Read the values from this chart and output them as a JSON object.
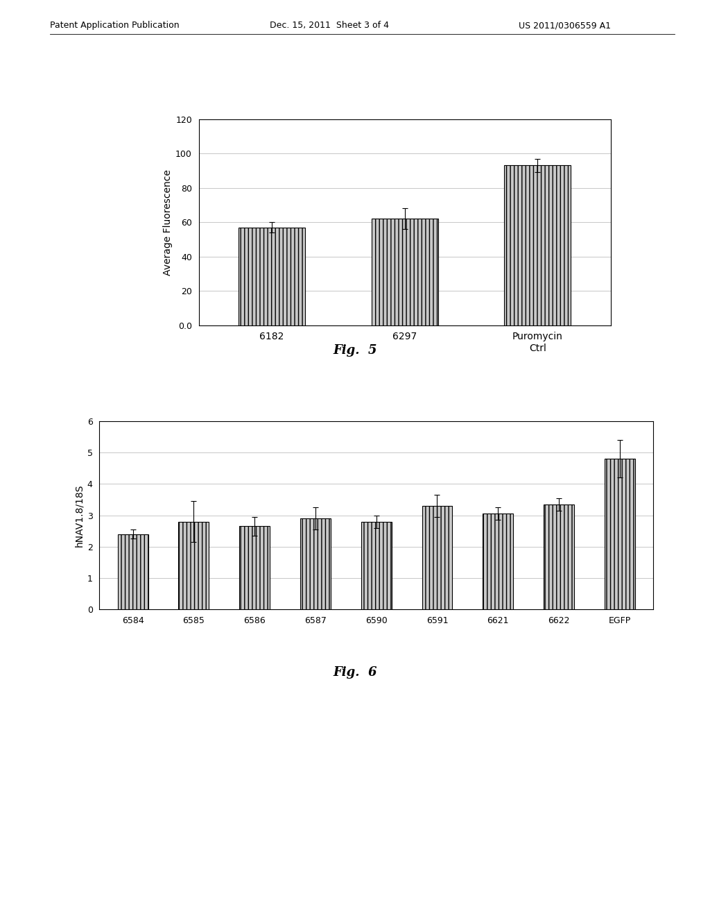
{
  "fig5": {
    "categories": [
      "6182",
      "6297",
      "Puromycin\nCtrl"
    ],
    "values": [
      57,
      62,
      93
    ],
    "errors": [
      3,
      6,
      4
    ],
    "ylabel": "Average Fluorescence",
    "ylim": [
      0,
      120
    ],
    "yticks": [
      0.0,
      20,
      40,
      60,
      80,
      100,
      120
    ],
    "ytick_labels": [
      "0.0",
      "20",
      "40",
      "60",
      "80",
      "100",
      "120"
    ],
    "caption": "Fig.  5"
  },
  "fig6": {
    "categories": [
      "6584",
      "6585",
      "6586",
      "6587",
      "6590",
      "6591",
      "6621",
      "6622",
      "EGFP"
    ],
    "values": [
      2.4,
      2.8,
      2.65,
      2.9,
      2.8,
      3.3,
      3.05,
      3.35,
      4.8
    ],
    "errors": [
      0.15,
      0.65,
      0.3,
      0.35,
      0.2,
      0.35,
      0.2,
      0.2,
      0.6
    ],
    "ylabel": "hNAV1.8/18S",
    "ylim": [
      0,
      6
    ],
    "yticks": [
      0,
      1,
      2,
      3,
      4,
      5,
      6
    ],
    "ytick_labels": [
      "0",
      "1",
      "2",
      "3",
      "4",
      "5",
      "6"
    ],
    "caption": "Fig.  6"
  },
  "header_left": "Patent Application Publication",
  "header_mid": "Dec. 15, 2011  Sheet 3 of 4",
  "header_right": "US 2011/0306559 A1",
  "bar_color": "#c8c8c8",
  "bar_edgecolor": "#000000",
  "hatch": "|||",
  "background_color": "#ffffff",
  "grid_color": "#b0b0b0"
}
